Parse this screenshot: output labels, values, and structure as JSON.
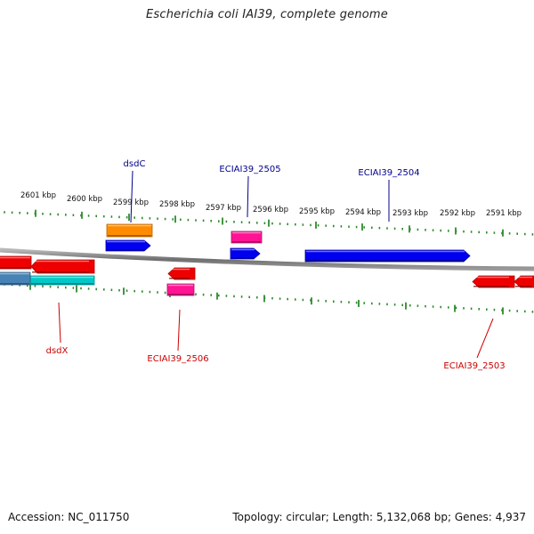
{
  "title": "Escherichia coli IAI39, complete genome",
  "footer": {
    "accession": "Accession: NC_011750",
    "summary": "Topology: circular; Length: 5,132,068 bp; Genes: 4,937"
  },
  "colors": {
    "backbone": "#8a8a8a",
    "tick": "#2e8b2e",
    "label_forward": "#00008b",
    "label_reverse": "#cc0000"
  },
  "tick_labels": [
    {
      "name": "tick-2601",
      "text": "2601 kbp"
    },
    {
      "name": "tick-2600",
      "text": "2600 kbp"
    },
    {
      "name": "tick-2599",
      "text": "2599 kbp"
    },
    {
      "name": "tick-2598",
      "text": "2598 kbp"
    },
    {
      "name": "tick-2597",
      "text": "2597 kbp"
    },
    {
      "name": "tick-2596",
      "text": "2596 kbp"
    },
    {
      "name": "tick-2595",
      "text": "2595 kbp"
    },
    {
      "name": "tick-2594",
      "text": "2594 kbp"
    },
    {
      "name": "tick-2593",
      "text": "2593 kbp"
    },
    {
      "name": "tick-2592",
      "text": "2592 kbp"
    },
    {
      "name": "tick-2591",
      "text": "2591 kbp"
    }
  ],
  "gene_labels": [
    {
      "name": "gene-label-dsdC",
      "text": "dsdC",
      "strand": "forward"
    },
    {
      "name": "gene-label-ECIAI39_2505",
      "text": "ECIAI39_2505",
      "strand": "forward"
    },
    {
      "name": "gene-label-ECIAI39_2504",
      "text": "ECIAI39_2504",
      "strand": "forward"
    },
    {
      "name": "gene-label-dsdX",
      "text": "dsdX",
      "strand": "reverse"
    },
    {
      "name": "gene-label-ECIAI39_2506",
      "text": "ECIAI39_2506",
      "strand": "reverse"
    },
    {
      "name": "gene-label-ECIAI39_2503",
      "text": "ECIAI39_2503",
      "strand": "reverse"
    }
  ],
  "features": [
    {
      "name": "cds-dsdC",
      "strand": "forward",
      "color": "#0000ee"
    },
    {
      "name": "gene-dsdC",
      "strand": "forward",
      "color": "#ff8c00"
    },
    {
      "name": "cds-ECIAI39_2505",
      "strand": "forward",
      "color": "#0000ee"
    },
    {
      "name": "gene-ECIAI39_2505",
      "strand": "forward",
      "color": "#ff1493"
    },
    {
      "name": "cds-ECIAI39_2504",
      "strand": "forward",
      "color": "#0000ee"
    },
    {
      "name": "cds-dsdX-left",
      "strand": "reverse",
      "color": "#ee0000"
    },
    {
      "name": "cds-dsdX",
      "strand": "reverse",
      "color": "#ee0000"
    },
    {
      "name": "gene-dsdX",
      "strand": "reverse",
      "color": "#00c8c8"
    },
    {
      "name": "gene-dsdX-left",
      "strand": "reverse",
      "color": "#4682b4"
    },
    {
      "name": "cds-ECIAI39_2506",
      "strand": "reverse",
      "color": "#ee0000"
    },
    {
      "name": "gene-ECIAI39_2506",
      "strand": "reverse",
      "color": "#ff1493"
    },
    {
      "name": "cds-ECIAI39_2503",
      "strand": "reverse",
      "color": "#ee0000"
    },
    {
      "name": "cds-ECIAI39_2503-right",
      "strand": "reverse",
      "color": "#ee0000"
    }
  ]
}
